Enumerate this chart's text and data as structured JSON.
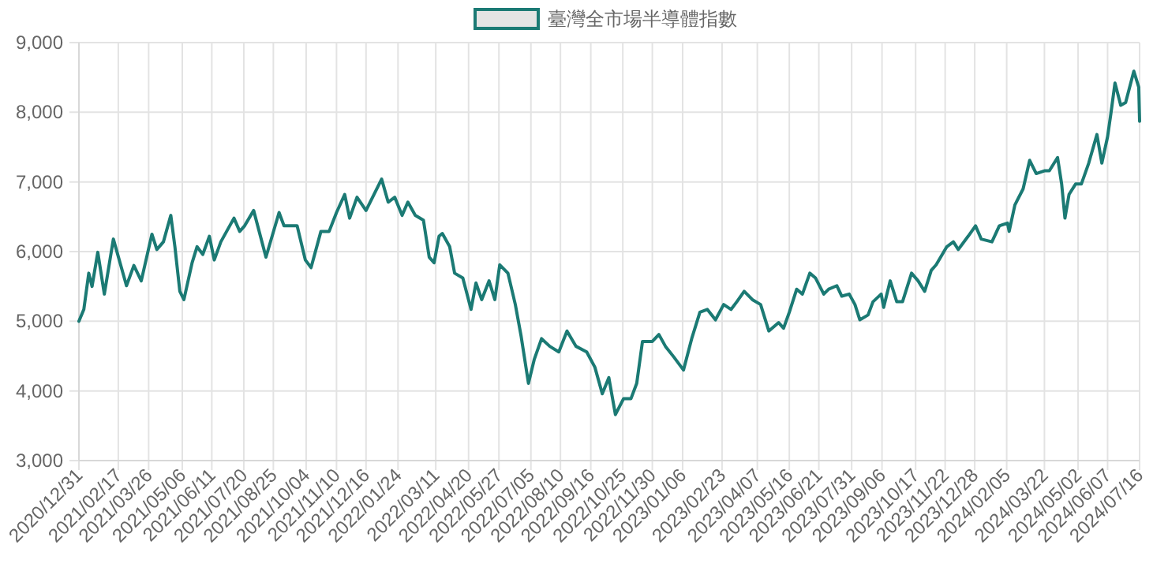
{
  "chart_data": {
    "type": "line",
    "legend": "top",
    "grid": true,
    "marker": "none",
    "line_style": "solid",
    "ylim": [
      3000,
      9000
    ],
    "yticks": [
      {
        "value": 3000,
        "label": "3,000"
      },
      {
        "value": 4000,
        "label": "4,000"
      },
      {
        "value": 5000,
        "label": "5,000"
      },
      {
        "value": 6000,
        "label": "6,000"
      },
      {
        "value": 7000,
        "label": "7,000"
      },
      {
        "value": 8000,
        "label": "8,000"
      },
      {
        "value": 9000,
        "label": "9,000"
      }
    ],
    "xlim": [
      "2020-12-31",
      "2024-07-16"
    ],
    "xticks": [
      {
        "value": "2020-12-31",
        "label": "2020/12/31"
      },
      {
        "value": "2021-02-17",
        "label": "2021/02/17"
      },
      {
        "value": "2021-03-26",
        "label": "2021/03/26"
      },
      {
        "value": "2021-05-06",
        "label": "2021/05/06"
      },
      {
        "value": "2021-06-11",
        "label": "2021/06/11"
      },
      {
        "value": "2021-07-20",
        "label": "2021/07/20"
      },
      {
        "value": "2021-08-25",
        "label": "2021/08/25"
      },
      {
        "value": "2021-10-04",
        "label": "2021/10/04"
      },
      {
        "value": "2021-11-10",
        "label": "2021/11/10"
      },
      {
        "value": "2021-12-16",
        "label": "2021/12/16"
      },
      {
        "value": "2022-01-24",
        "label": "2022/01/24"
      },
      {
        "value": "2022-03-11",
        "label": "2022/03/11"
      },
      {
        "value": "2022-04-20",
        "label": "2022/04/20"
      },
      {
        "value": "2022-05-27",
        "label": "2022/05/27"
      },
      {
        "value": "2022-07-05",
        "label": "2022/07/05"
      },
      {
        "value": "2022-08-10",
        "label": "2022/08/10"
      },
      {
        "value": "2022-09-16",
        "label": "2022/09/16"
      },
      {
        "value": "2022-10-25",
        "label": "2022/10/25"
      },
      {
        "value": "2022-11-30",
        "label": "2022/11/30"
      },
      {
        "value": "2023-01-06",
        "label": "2023/01/06"
      },
      {
        "value": "2023-02-23",
        "label": "2023/02/23"
      },
      {
        "value": "2023-04-07",
        "label": "2023/04/07"
      },
      {
        "value": "2023-05-16",
        "label": "2023/05/16"
      },
      {
        "value": "2023-06-21",
        "label": "2023/06/21"
      },
      {
        "value": "2023-07-31",
        "label": "2023/07/31"
      },
      {
        "value": "2023-09-06",
        "label": "2023/09/06"
      },
      {
        "value": "2023-10-17",
        "label": "2023/10/17"
      },
      {
        "value": "2023-11-22",
        "label": "2023/11/22"
      },
      {
        "value": "2023-12-28",
        "label": "2023/12/28"
      },
      {
        "value": "2024-02-05",
        "label": "2024/02/05"
      },
      {
        "value": "2024-03-22",
        "label": "2024/03/22"
      },
      {
        "value": "2024-05-02",
        "label": "2024/05/02"
      },
      {
        "value": "2024-06-07",
        "label": "2024/06/07"
      },
      {
        "value": "2024-07-16",
        "label": "2024/07/16"
      }
    ],
    "series": [
      {
        "name": "臺灣全市場半導體指數",
        "color": "#1b7a74",
        "x": [
          "2020-12-31",
          "2021-01-06",
          "2021-01-12",
          "2021-01-16",
          "2021-01-23",
          "2021-01-31",
          "2021-02-11",
          "2021-02-27",
          "2021-03-08",
          "2021-03-17",
          "2021-03-30",
          "2021-04-05",
          "2021-04-13",
          "2021-04-22",
          "2021-04-27",
          "2021-05-03",
          "2021-05-08",
          "2021-05-18",
          "2021-05-24",
          "2021-05-31",
          "2021-06-08",
          "2021-06-14",
          "2021-06-22",
          "2021-07-08",
          "2021-07-15",
          "2021-07-21",
          "2021-08-01",
          "2021-08-16",
          "2021-09-01",
          "2021-09-07",
          "2021-09-23",
          "2021-10-03",
          "2021-10-10",
          "2021-10-22",
          "2021-11-01",
          "2021-11-10",
          "2021-11-20",
          "2021-11-26",
          "2021-12-05",
          "2021-12-16",
          "2022-01-04",
          "2022-01-12",
          "2022-01-20",
          "2022-01-29",
          "2022-02-05",
          "2022-02-14",
          "2022-02-24",
          "2022-03-03",
          "2022-03-09",
          "2022-03-15",
          "2022-03-19",
          "2022-03-28",
          "2022-04-03",
          "2022-04-13",
          "2022-04-23",
          "2022-04-29",
          "2022-05-06",
          "2022-05-15",
          "2022-05-22",
          "2022-05-28",
          "2022-06-07",
          "2022-06-16",
          "2022-06-23",
          "2022-07-02",
          "2022-07-09",
          "2022-07-18",
          "2022-07-28",
          "2022-08-08",
          "2022-08-18",
          "2022-08-29",
          "2022-09-11",
          "2022-09-21",
          "2022-09-30",
          "2022-10-08",
          "2022-10-16",
          "2022-10-26",
          "2022-11-04",
          "2022-11-11",
          "2022-11-18",
          "2022-11-30",
          "2022-12-08",
          "2022-12-16",
          "2022-12-26",
          "2023-01-07",
          "2023-01-17",
          "2023-01-27",
          "2023-02-05",
          "2023-02-15",
          "2023-02-25",
          "2023-03-06",
          "2023-03-13",
          "2023-03-22",
          "2023-04-01",
          "2023-04-11",
          "2023-04-21",
          "2023-05-03",
          "2023-05-09",
          "2023-05-16",
          "2023-05-25",
          "2023-06-01",
          "2023-06-10",
          "2023-06-17",
          "2023-06-27",
          "2023-07-03",
          "2023-07-13",
          "2023-07-19",
          "2023-07-28",
          "2023-08-04",
          "2023-08-10",
          "2023-08-20",
          "2023-08-26",
          "2023-09-05",
          "2023-09-08",
          "2023-09-16",
          "2023-09-24",
          "2023-10-01",
          "2023-10-12",
          "2023-10-20",
          "2023-10-28",
          "2023-11-05",
          "2023-11-11",
          "2023-11-24",
          "2023-12-02",
          "2023-12-08",
          "2023-12-20",
          "2023-12-29",
          "2024-01-05",
          "2024-01-18",
          "2024-01-27",
          "2024-02-06",
          "2024-02-08",
          "2024-02-15",
          "2024-02-25",
          "2024-03-04",
          "2024-03-12",
          "2024-03-22",
          "2024-03-28",
          "2024-04-07",
          "2024-04-12",
          "2024-04-16",
          "2024-04-21",
          "2024-04-29",
          "2024-05-06",
          "2024-05-15",
          "2024-05-25",
          "2024-05-31",
          "2024-06-07",
          "2024-06-11",
          "2024-06-16",
          "2024-06-23",
          "2024-06-29",
          "2024-07-09",
          "2024-07-15",
          "2024-07-16"
        ],
        "values": [
          5000,
          5170,
          5690,
          5500,
          5990,
          5390,
          6180,
          5510,
          5800,
          5580,
          6250,
          6030,
          6140,
          6520,
          6070,
          5430,
          5310,
          5840,
          6070,
          5960,
          6220,
          5880,
          6140,
          6480,
          6290,
          6370,
          6590,
          5920,
          6560,
          6370,
          6370,
          5880,
          5770,
          6290,
          6290,
          6560,
          6820,
          6480,
          6780,
          6590,
          7040,
          6710,
          6780,
          6520,
          6710,
          6520,
          6450,
          5920,
          5840,
          6220,
          6260,
          6070,
          5690,
          5620,
          5170,
          5550,
          5310,
          5580,
          5310,
          5810,
          5690,
          5240,
          4790,
          4110,
          4450,
          4750,
          4640,
          4560,
          4860,
          4640,
          4560,
          4340,
          3960,
          4190,
          3660,
          3890,
          3890,
          4110,
          4710,
          4710,
          4810,
          4640,
          4490,
          4300,
          4750,
          5130,
          5170,
          5020,
          5240,
          5170,
          5280,
          5430,
          5310,
          5240,
          4860,
          4980,
          4900,
          5130,
          5460,
          5390,
          5690,
          5620,
          5390,
          5460,
          5510,
          5360,
          5390,
          5240,
          5020,
          5090,
          5280,
          5390,
          5200,
          5580,
          5280,
          5280,
          5690,
          5580,
          5430,
          5730,
          5810,
          6070,
          6140,
          6030,
          6220,
          6370,
          6180,
          6140,
          6370,
          6410,
          6290,
          6670,
          6900,
          7310,
          7120,
          7160,
          7160,
          7350,
          6970,
          6480,
          6820,
          6970,
          6970,
          7270,
          7680,
          7270,
          7650,
          7980,
          8420,
          8100,
          8140,
          8590,
          8360,
          7870
        ]
      }
    ]
  }
}
